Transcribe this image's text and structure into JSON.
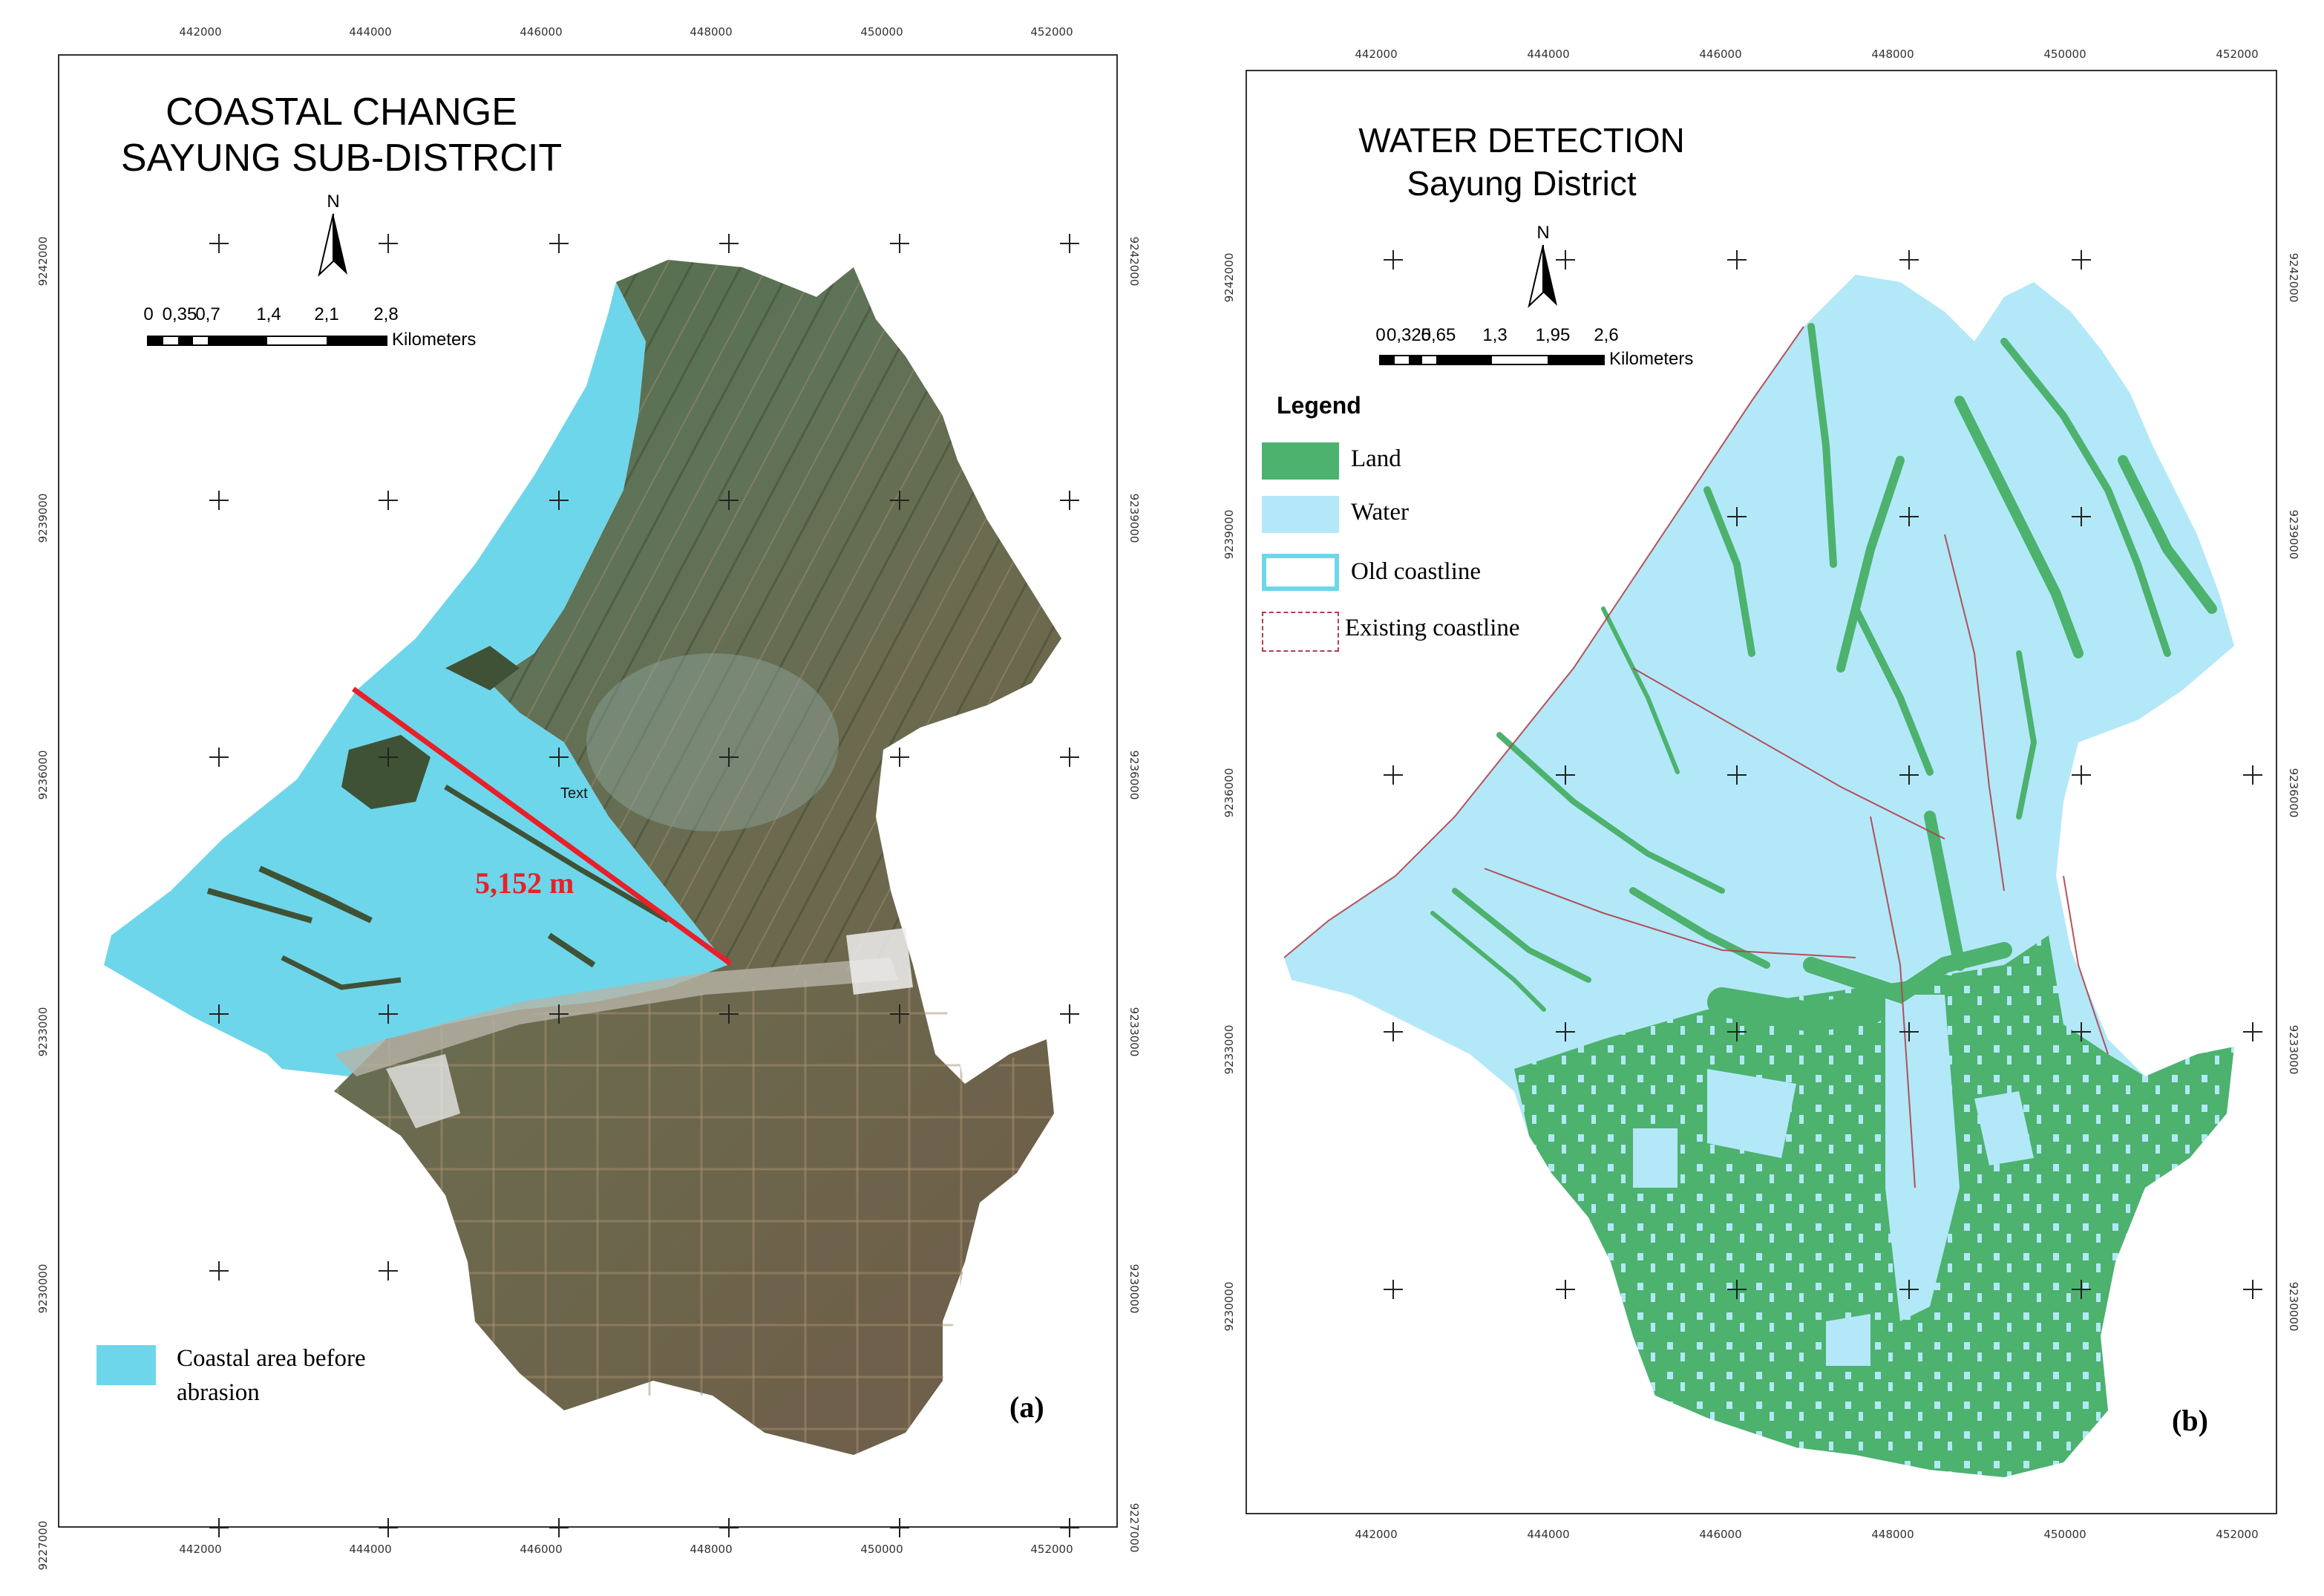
{
  "panel_a": {
    "title_line1": "COASTAL  CHANGE",
    "title_line2": "SAYUNG SUB-DISTRCIT",
    "north": "N",
    "scale_labels": [
      "0",
      "0,35",
      "0,7",
      "1,4",
      "2,1",
      "2,8"
    ],
    "scale_unit": "Kilometers",
    "x_ticks": [
      "442000",
      "444000",
      "446000",
      "448000",
      "450000",
      "452000"
    ],
    "y_ticks": [
      "9242000",
      "9239000",
      "9236000",
      "9233000",
      "9230000",
      "9227000"
    ],
    "distance_label": "5,152 m",
    "text_label": "Text",
    "legend": {
      "swatch_label_line1": "Coastal area before",
      "swatch_label_line2": "abrasion",
      "swatch_color": "#6ed6ea"
    },
    "panel_label": "(a)"
  },
  "panel_b": {
    "title_line1": "WATER DETECTION",
    "title_line2": "Sayung District",
    "north": "N",
    "scale_labels": [
      "0",
      "0,325",
      "0,65",
      "1,3",
      "1,95",
      "2,6"
    ],
    "scale_unit": "Kilometers",
    "x_ticks": [
      "442000",
      "444000",
      "446000",
      "448000",
      "450000",
      "452000"
    ],
    "y_ticks": [
      "9242000",
      "9239000",
      "9236000",
      "9233000",
      "9230000"
    ],
    "legend_title": "Legend",
    "legend_items": [
      {
        "label": "Land",
        "color": "#4cb26e",
        "icon": "land-swatch"
      },
      {
        "label": "Water",
        "color": "#b3e8f8",
        "icon": "water-swatch"
      },
      {
        "label": "Old coastline",
        "color": "#6ed6ea",
        "icon": "old-coastline-swatch"
      },
      {
        "label": "Existing coastline",
        "color": "#b0404a",
        "icon": "existing-coastline-swatch"
      }
    ],
    "panel_label": "(b)"
  },
  "colors": {
    "coastal_before": "#6ed6ea",
    "land_green": "#4cb26e",
    "water_light": "#b3e8f8",
    "distance_line": "#e8202a",
    "imagery_dark": "#4f5a3c"
  }
}
